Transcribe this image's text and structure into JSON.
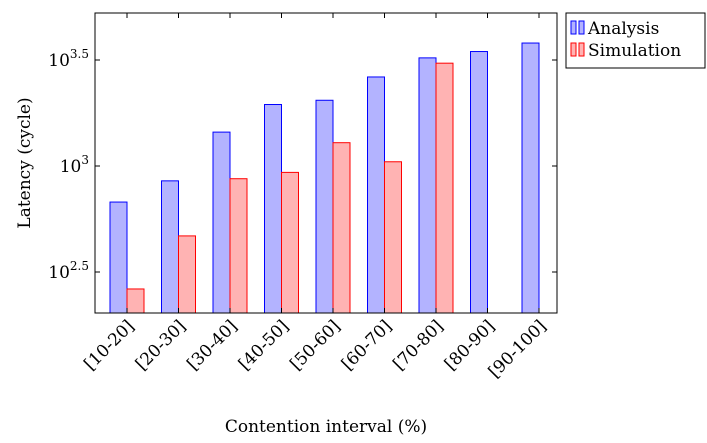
{
  "chart_data": {
    "type": "bar",
    "title": "",
    "xlabel": "Contention interval (%)",
    "ylabel": "Latency (cycle)",
    "yscale": "log10",
    "ylim": [
      200,
      5500
    ],
    "yticks": [
      {
        "exp": "2.5",
        "value": 316.2
      },
      {
        "exp": "3",
        "value": 1000
      },
      {
        "exp": "3.5",
        "value": 3162.3
      }
    ],
    "tick_base": "10",
    "categories": [
      "[10-20]",
      "[20-30]",
      "[30-40]",
      "[40-50]",
      "[50-60]",
      "[60-70]",
      "[70-80]",
      "[80-90]",
      "[90-100]"
    ],
    "series": [
      {
        "name": "Analysis",
        "color": "#b3b3ff",
        "stroke": "#0000ff",
        "values": [
          676,
          851,
          1445,
          1950,
          2042,
          2630,
          3236,
          3467,
          3802
        ]
      },
      {
        "name": "Simulation",
        "color": "#ffb3b3",
        "stroke": "#ff0000",
        "values": [
          263,
          468,
          871,
          933,
          1288,
          1047,
          3055,
          null,
          null
        ]
      }
    ],
    "grid": false,
    "legend": "outside-top-right"
  }
}
